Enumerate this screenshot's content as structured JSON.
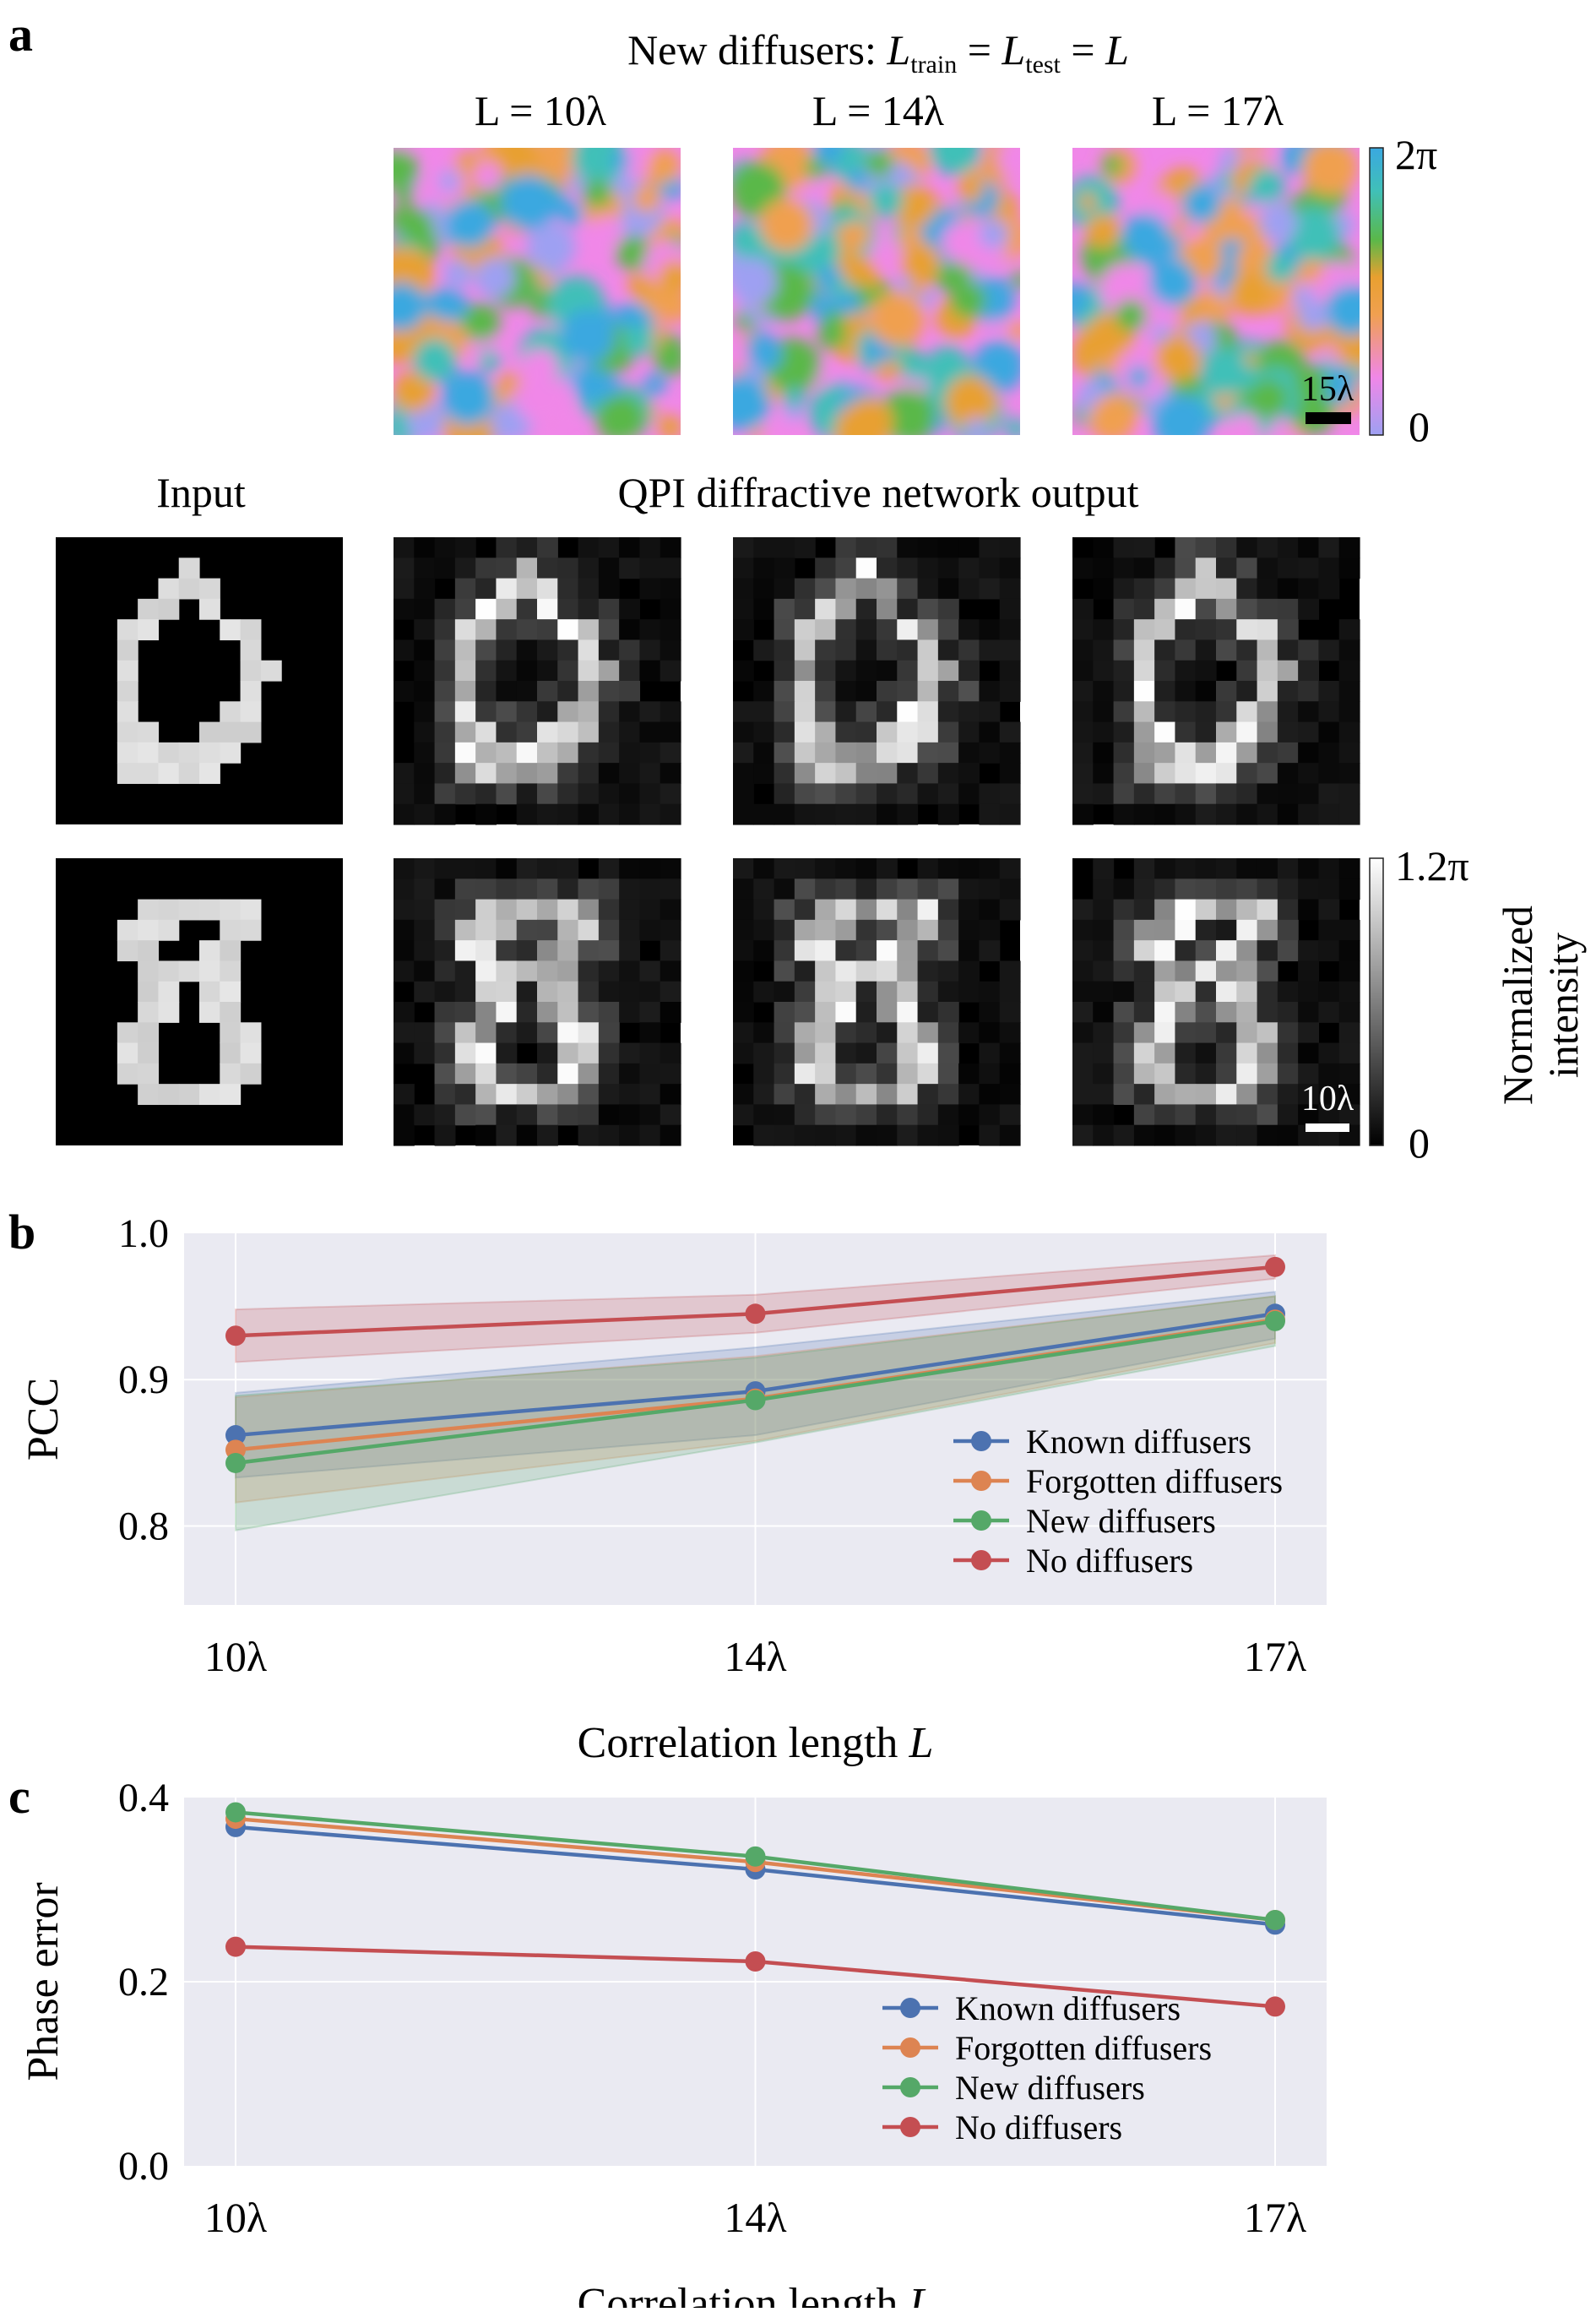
{
  "panel_a": {
    "letter": "a",
    "header_prefix": "New diffusers: ",
    "header_L1": "L",
    "header_sub1": "train",
    "header_eq1": " = ",
    "header_L2": "L",
    "header_sub2": "test",
    "header_eq2": " = ",
    "header_L3": "L",
    "diffuser_labels": [
      "L = 10λ",
      "L = 14λ",
      "L = 17λ"
    ],
    "diffuser_scalebar": "15λ",
    "phase_colorbar": {
      "max": "2π",
      "min": "0",
      "colors": [
        "#9ea0f2",
        "#f087e8",
        "#f0a050",
        "#e8a030",
        "#5ab84a",
        "#40c0b8",
        "#3aa8e0"
      ]
    },
    "input_label": "Input",
    "output_label": "QPI diffractive network output",
    "intensity_colorbar": {
      "max": "1.2π",
      "min": "0",
      "title_line1": "Normalized",
      "title_line2": "intensity"
    },
    "output_scalebar": "10λ"
  },
  "chart_data": [
    {
      "type": "line",
      "panel": "b",
      "categories": [
        "10λ",
        "14λ",
        "17λ"
      ],
      "xlabel": "Correlation length L",
      "ylabel": "PCC",
      "ylim": [
        0.746,
        1.0
      ],
      "yticks": [
        "0.8",
        "0.9",
        "1.0"
      ],
      "ytick_values": [
        0.8,
        0.9,
        1.0
      ],
      "grid": true,
      "legend": "lower-right",
      "series": [
        {
          "name": "Known diffusers",
          "color": "#4c72b0",
          "values": [
            0.862,
            0.892,
            0.945
          ],
          "band": [
            [
              0.833,
              0.891
            ],
            [
              0.862,
              0.922
            ],
            [
              0.928,
              0.96
            ]
          ]
        },
        {
          "name": "Forgotten diffusers",
          "color": "#dd8452",
          "values": [
            0.852,
            0.887,
            0.941
          ],
          "band": [
            [
              0.816,
              0.888
            ],
            [
              0.858,
              0.916
            ],
            [
              0.925,
              0.957
            ]
          ]
        },
        {
          "name": "New diffusers",
          "color": "#55a868",
          "values": [
            0.843,
            0.886,
            0.94
          ],
          "band": [
            [
              0.797,
              0.889
            ],
            [
              0.857,
              0.915
            ],
            [
              0.923,
              0.957
            ]
          ]
        },
        {
          "name": "No diffusers",
          "color": "#c44e52",
          "values": [
            0.93,
            0.945,
            0.977
          ],
          "band": [
            [
              0.912,
              0.948
            ],
            [
              0.932,
              0.958
            ],
            [
              0.969,
              0.985
            ]
          ]
        }
      ]
    },
    {
      "type": "line",
      "panel": "c",
      "categories": [
        "10λ",
        "14λ",
        "17λ"
      ],
      "xlabel": "Correlation length L",
      "ylabel": "Phase error",
      "ylim": [
        0.0,
        0.4
      ],
      "yticks": [
        "0.0",
        "0.2",
        "0.4"
      ],
      "ytick_values": [
        0.0,
        0.2,
        0.4
      ],
      "grid": true,
      "legend": "lower-right",
      "series": [
        {
          "name": "Known diffusers",
          "color": "#4c72b0",
          "values": [
            0.368,
            0.322,
            0.262
          ]
        },
        {
          "name": "Forgotten diffusers",
          "color": "#dd8452",
          "values": [
            0.377,
            0.33,
            0.267
          ]
        },
        {
          "name": "New diffusers",
          "color": "#55a868",
          "values": [
            0.384,
            0.336,
            0.267
          ]
        },
        {
          "name": "No diffusers",
          "color": "#c44e52",
          "values": [
            0.238,
            0.222,
            0.173
          ]
        }
      ]
    }
  ]
}
